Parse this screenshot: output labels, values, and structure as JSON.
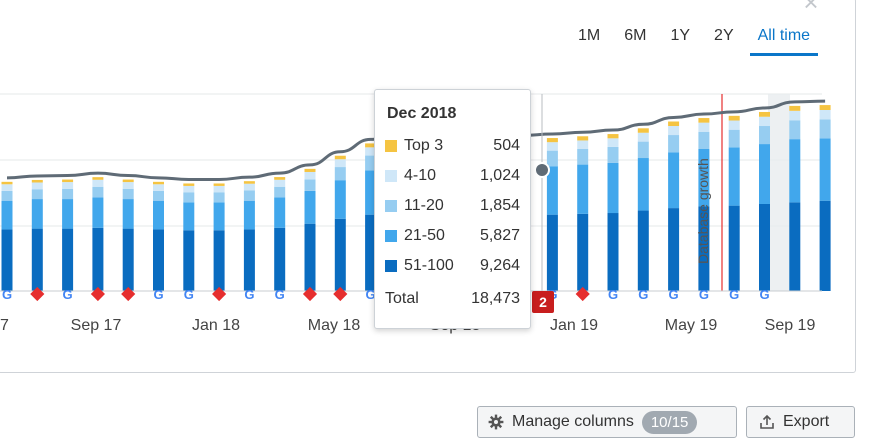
{
  "range_tabs": [
    "1M",
    "6M",
    "1Y",
    "2Y",
    "All time"
  ],
  "active_range": "All time",
  "colors": {
    "top3": "#f5c442",
    "p4_10": "#cfe7f8",
    "p11_20": "#96cdf1",
    "p21_50": "#41a7ec",
    "p51_100": "#0a6cc0",
    "line": "#5f6b76",
    "flag": "#e62e2e",
    "grid": "#e6e8ea",
    "axis": "#c8ccd0",
    "accent": "#0a76c9"
  },
  "chart_data": {
    "type": "bar",
    "stacked": true,
    "series": [
      {
        "name": "51-100",
        "values": [
          7500,
          7600,
          7600,
          7700,
          7600,
          7500,
          7400,
          7400,
          7500,
          7700,
          8200,
          8800,
          9300,
          9500,
          9400,
          9400,
          9200,
          9264,
          9300,
          9400,
          9500,
          9800,
          10100,
          10300,
          10400,
          10600,
          10800,
          11000
        ]
      },
      {
        "name": "21-50",
        "values": [
          3500,
          3600,
          3600,
          3700,
          3600,
          3500,
          3400,
          3400,
          3500,
          3700,
          4000,
          4700,
          5400,
          6300,
          6400,
          6200,
          5900,
          5827,
          5900,
          6000,
          6100,
          6400,
          6800,
          7000,
          7100,
          7300,
          7700,
          7600
        ]
      },
      {
        "name": "11-20",
        "values": [
          1200,
          1200,
          1250,
          1300,
          1250,
          1200,
          1200,
          1200,
          1250,
          1300,
          1400,
          1600,
          1800,
          1950,
          1950,
          1900,
          1850,
          1854,
          1900,
          1900,
          1950,
          2000,
          2100,
          2100,
          2150,
          2200,
          2300,
          2300
        ]
      },
      {
        "name": "4-10",
        "values": [
          800,
          820,
          820,
          850,
          820,
          800,
          800,
          800,
          820,
          850,
          900,
          950,
          1000,
          1050,
          1050,
          1040,
          1030,
          1024,
          1030,
          1040,
          1050,
          1080,
          1100,
          1110,
          1120,
          1130,
          1150,
          1150
        ]
      },
      {
        "name": "Top 3",
        "values": [
          300,
          310,
          310,
          320,
          310,
          300,
          300,
          300,
          310,
          330,
          380,
          430,
          480,
          520,
          520,
          510,
          505,
          504,
          505,
          510,
          520,
          540,
          550,
          560,
          570,
          580,
          600,
          600
        ]
      }
    ],
    "total_line": [
      13300,
      13530,
      13580,
      13870,
      13580,
      13300,
      13100,
      13100,
      13380,
      13880,
      14880,
      16480,
      17980,
      19320,
      19320,
      19050,
      18485,
      18473,
      18635,
      18850,
      19120,
      19820,
      20650,
      21070,
      21340,
      21810,
      22550,
      22650
    ],
    "x_tick_labels": [
      "7",
      "Sep 17",
      "Jan 18",
      "May 18",
      "Sep 18",
      "Jan 19",
      "May 19",
      "Sep 19"
    ],
    "markers": [
      "google",
      "flag",
      "google",
      "flag",
      "flag",
      "google",
      "google",
      "flag",
      "google",
      "google",
      "flag",
      "flag",
      "google",
      "flag",
      "flag",
      "google",
      "google",
      "flag",
      "google",
      "flag",
      "google",
      "google",
      "google",
      "google",
      "google",
      "google"
    ],
    "annotation": {
      "label": "Database growth",
      "value": "2"
    },
    "tooltip": {
      "title": "Dec 2018",
      "rows": [
        {
          "label": "Top 3",
          "value": "504"
        },
        {
          "label": "4-10",
          "value": "1,024"
        },
        {
          "label": "11-20",
          "value": "1,854"
        },
        {
          "label": "21-50",
          "value": "5,827"
        },
        {
          "label": "51-100",
          "value": "9,264"
        }
      ],
      "total_label": "Total",
      "total_value": "18,473"
    }
  },
  "buttons": {
    "manage_label": "Manage columns",
    "manage_count": "10/15",
    "export_label": "Export"
  }
}
